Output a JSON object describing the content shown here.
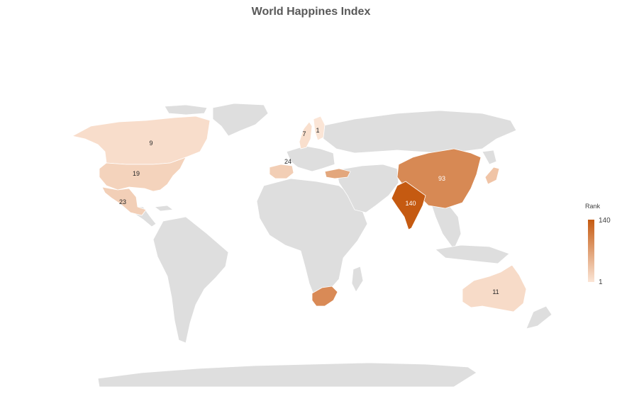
{
  "title": "World Happines Index",
  "legend": {
    "title": "Rank",
    "max_label": "140",
    "min_label": "1",
    "color_low": "#fbe5d6",
    "color_high": "#c55a11"
  },
  "countries": [
    {
      "name": "Finland",
      "rank": 1
    },
    {
      "name": "Sweden",
      "rank": 7
    },
    {
      "name": "Canada",
      "rank": 9
    },
    {
      "name": "Australia",
      "rank": 11
    },
    {
      "name": "United States",
      "rank": 19
    },
    {
      "name": "Mexico",
      "rank": 23
    },
    {
      "name": "Spain",
      "rank": 24
    },
    {
      "name": "China",
      "rank": 93
    },
    {
      "name": "India",
      "rank": 140
    }
  ]
}
